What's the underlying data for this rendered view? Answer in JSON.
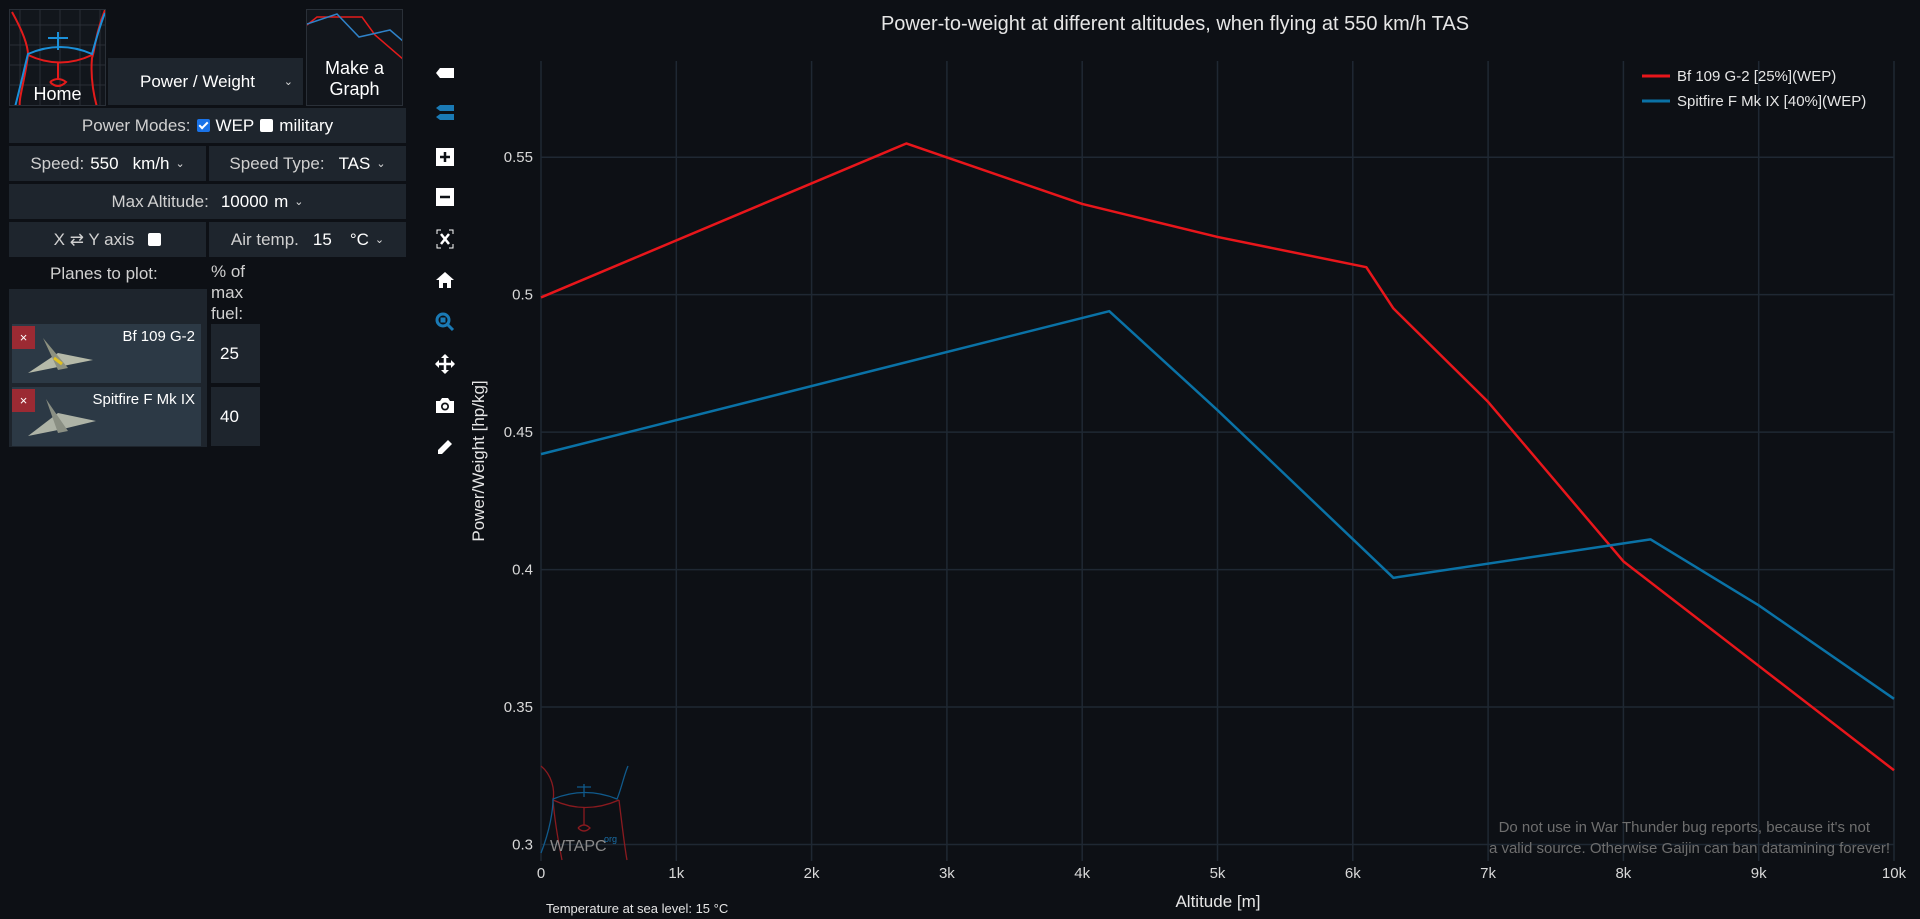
{
  "nav": {
    "home_label": "Home",
    "graph_type": "Power / Weight",
    "make_graph_label": "Make a Graph"
  },
  "controls": {
    "power_modes_label": "Power Modes:",
    "wep_label": "WEP",
    "wep_checked": true,
    "military_label": "military",
    "military_checked": false,
    "speed_label": "Speed:",
    "speed_value": "550",
    "speed_unit": "km/h",
    "speed_type_label": "Speed Type:",
    "speed_type_value": "TAS",
    "max_alt_label": "Max Altitude:",
    "max_alt_value": "10000",
    "max_alt_unit": "m",
    "swap_axis_label": "X ⇄ Y axis",
    "swap_axis_checked": false,
    "air_temp_label": "Air temp.",
    "air_temp_value": "15",
    "air_temp_unit": "°C"
  },
  "planes": {
    "header": "Planes to plot:",
    "fuel_header": "% of max fuel:",
    "items": [
      {
        "name": "Bf 109 G-2",
        "fuel": "25",
        "remove": "×"
      },
      {
        "name": "Spitfire F Mk IX",
        "fuel": "40",
        "remove": "×"
      }
    ]
  },
  "toolbar": [
    "tag-icon",
    "tags-icon",
    "zoom-in-icon",
    "zoom-out-icon",
    "autoscale-icon",
    "home-icon",
    "zoom-icon",
    "pan-icon",
    "camera-icon",
    "pencil-icon"
  ],
  "footer": {
    "temperature_note": "Temperature at sea level: 15 °C",
    "disclaimer_1": "Do not use in War Thunder bug reports, because it's not",
    "disclaimer_2": "a valid source. Otherwise Gaijin can ban datamining forever!",
    "watermark": "WTAPC",
    "watermark_sup": "org"
  },
  "chart_data": {
    "type": "line",
    "title": "Power-to-weight at different altitudes, when flying at 550 km/h TAS",
    "xlabel": "Altitude [m]",
    "ylabel": "Power/Weight [hp/kg]",
    "xlim": [
      0,
      10000
    ],
    "ylim": [
      0.294,
      0.585
    ],
    "xticks": [
      0,
      1000,
      2000,
      3000,
      4000,
      5000,
      6000,
      7000,
      8000,
      9000,
      10000
    ],
    "xtick_labels": [
      "0",
      "1k",
      "2k",
      "3k",
      "4k",
      "5k",
      "6k",
      "7k",
      "8k",
      "9k",
      "10k"
    ],
    "yticks": [
      0.3,
      0.35,
      0.4,
      0.45,
      0.5,
      0.55
    ],
    "ytick_labels": [
      "0.3",
      "0.35",
      "0.4",
      "0.45",
      "0.5",
      "0.55"
    ],
    "grid": true,
    "legend": "top-right",
    "series": [
      {
        "name": "Bf 109 G-2 [25%](WEP)",
        "color": "#e8161b",
        "x": [
          0,
          2700,
          4000,
          5000,
          6100,
          6300,
          7000,
          8000,
          9000,
          10000
        ],
        "y": [
          0.499,
          0.555,
          0.533,
          0.521,
          0.51,
          0.495,
          0.461,
          0.403,
          0.365,
          0.327
        ]
      },
      {
        "name": "Spitfire F Mk IX [40%](WEP)",
        "color": "#0a72a6",
        "x": [
          0,
          4200,
          5000,
          6300,
          8200,
          9000,
          10000
        ],
        "y": [
          0.442,
          0.494,
          0.458,
          0.397,
          0.411,
          0.387,
          0.353
        ]
      }
    ]
  }
}
